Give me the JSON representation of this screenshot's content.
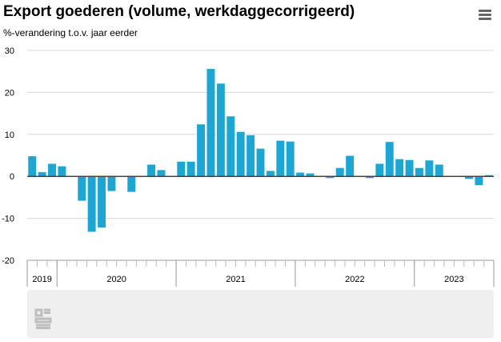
{
  "header": {
    "title": "Export goederen (volume, werkdaggecorrigeerd)",
    "subtitle": "%-verandering t.o.v. jaar eerder",
    "menu_icon": "hamburger-menu-icon"
  },
  "logo_icon": "cbs-logo-icon",
  "colors": {
    "bar": "#1aa7d6",
    "zero_line": "#444444",
    "grid": "#d9d9d9"
  },
  "chart_data": {
    "type": "bar",
    "title": "Export goederen (volume, werkdaggecorrigeerd)",
    "subtitle": "%-verandering t.o.v. jaar eerder",
    "ylim": [
      -20,
      30
    ],
    "yticks": [
      -20,
      -10,
      0,
      10,
      20,
      30
    ],
    "grid": true,
    "start_year": 2019,
    "start_month": 10,
    "year_groups": [
      {
        "label": "2019",
        "months": 3
      },
      {
        "label": "2020",
        "months": 12
      },
      {
        "label": "2021",
        "months": 12
      },
      {
        "label": "2022",
        "months": 12
      },
      {
        "label": "2023",
        "months": 8
      }
    ],
    "values": [
      4.8,
      1.0,
      3.0,
      2.4,
      0.0,
      -5.8,
      -13.2,
      -12.2,
      -3.5,
      0.0,
      -3.7,
      0.0,
      2.8,
      1.5,
      0.0,
      3.5,
      3.5,
      12.4,
      25.6,
      22.1,
      14.3,
      10.6,
      9.8,
      6.6,
      1.3,
      8.5,
      8.3,
      0.9,
      0.7,
      0.0,
      -0.4,
      2.0,
      4.9,
      0.0,
      -0.4,
      3.0,
      8.2,
      4.1,
      3.9,
      2.0,
      3.8,
      2.8,
      0.0,
      0.0,
      -0.6,
      -2.1,
      0.3
    ]
  }
}
